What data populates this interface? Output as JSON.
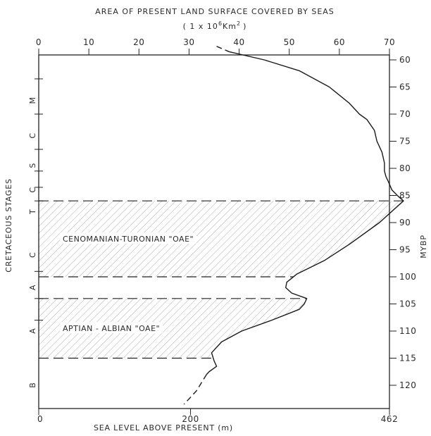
{
  "chart_data": {
    "type": "line",
    "title": "AREA OF PRESENT LAND SURFACE COVERED BY SEAS",
    "subtitle": "( 1 x 10",
    "subtitle_sup": "6",
    "subtitle_unit": "Km",
    "subtitle_unit_sup": "2",
    "subtitle_close": ")",
    "xlabel": "SEA LEVEL ABOVE PRESENT (m)",
    "ylabel_right": "MYBP",
    "ylabel_left": "CRETACEOUS STAGES",
    "top_axis": {
      "min": 0,
      "max": 70,
      "ticks": [
        0,
        10,
        20,
        30,
        40,
        50,
        60,
        70
      ]
    },
    "bottom_axis": {
      "ticks": [
        0,
        200,
        462
      ],
      "tick_positions_top_units": [
        0,
        30.3,
        70
      ]
    },
    "y_axis": {
      "min": 57,
      "max": 124,
      "inverted": true,
      "ticks": [
        60,
        65,
        70,
        75,
        80,
        85,
        90,
        95,
        100,
        105,
        110,
        115,
        120
      ]
    },
    "series": [
      {
        "solid": [
          [
            38,
            58.5
          ],
          [
            45,
            60
          ],
          [
            52,
            62
          ],
          [
            58,
            65
          ],
          [
            62,
            68
          ],
          [
            64,
            70
          ],
          [
            65.5,
            71
          ],
          [
            67,
            73
          ],
          [
            67.5,
            75
          ],
          [
            68.5,
            77
          ],
          [
            69,
            79
          ],
          [
            69,
            80.5
          ],
          [
            69.3,
            81.5
          ],
          [
            69.8,
            82.5
          ],
          [
            70.5,
            84
          ],
          [
            71.8,
            85.2
          ],
          [
            72.8,
            86
          ],
          [
            68,
            90
          ],
          [
            62,
            94
          ],
          [
            57,
            97
          ],
          [
            51.5,
            99.5
          ],
          [
            49.5,
            101
          ],
          [
            49.3,
            102
          ],
          [
            50.5,
            103
          ],
          [
            53.5,
            104
          ],
          [
            53,
            105
          ],
          [
            52,
            106
          ],
          [
            46.5,
            108
          ],
          [
            40.5,
            110
          ],
          [
            36.5,
            112
          ],
          [
            34.5,
            114
          ],
          [
            35,
            115.5
          ],
          [
            35.5,
            116.5
          ],
          [
            34,
            117.5
          ],
          [
            33.5,
            118
          ]
        ],
        "dashed_start": [
          [
            35.5,
            57.5
          ],
          [
            38,
            58.5
          ]
        ],
        "dashed_end": [
          [
            33.5,
            118
          ],
          [
            31.5,
            121
          ],
          [
            29,
            123.5
          ]
        ]
      }
    ],
    "bands": [
      {
        "label": "CENOMANIAN-TURONIAN \"OAE\"",
        "y_top": 86,
        "y_bottom": 100
      },
      {
        "label": "APTIAN - ALBIAN \"OAE\"",
        "y_top": 104,
        "y_bottom": 115
      }
    ],
    "stages": [
      {
        "label": "M",
        "y": 67.5
      },
      {
        "label": "C",
        "y": 74
      },
      {
        "label": "S",
        "y": 79.5
      },
      {
        "label": "C",
        "y": 84
      },
      {
        "label": "T",
        "y": 88
      },
      {
        "label": "C",
        "y": 96
      },
      {
        "label": "A",
        "y": 102
      },
      {
        "label": "A",
        "y": 110
      },
      {
        "label": "B",
        "y": 120
      }
    ],
    "stage_ticks": [
      63.5,
      70,
      76.5,
      80.5,
      83.5,
      86,
      99,
      104,
      108
    ],
    "grid": false,
    "legend": "none"
  }
}
